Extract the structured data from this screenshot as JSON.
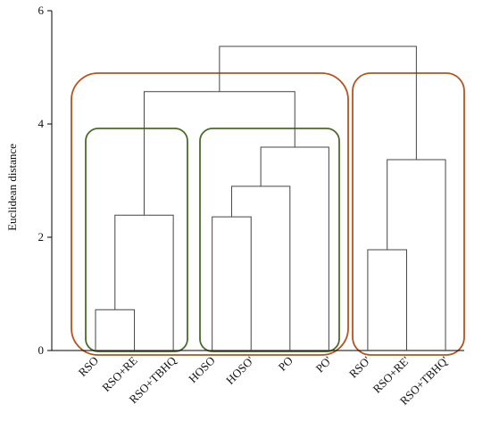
{
  "chart_data": {
    "type": "dendrogram",
    "y_label": "Euclidean distance",
    "ylim": [
      0,
      6
    ],
    "yticks": [
      0,
      2,
      4,
      6
    ],
    "leaves": [
      "RSO",
      "RSO+RE",
      "RSO+TBHQ",
      "HOSO",
      "HOSO'",
      "PO",
      "PO'",
      "RSO'",
      "RSO+RE'",
      "RSO+TBHQ'"
    ],
    "merges": [
      {
        "children": [
          0,
          1
        ],
        "height": 0.72
      },
      {
        "children": [
          10,
          2
        ],
        "height": 2.39
      },
      {
        "children": [
          3,
          4
        ],
        "height": 2.36
      },
      {
        "children": [
          12,
          5
        ],
        "height": 2.9
      },
      {
        "children": [
          13,
          6
        ],
        "height": 3.59
      },
      {
        "children": [
          11,
          14
        ],
        "height": 4.57
      },
      {
        "children": [
          7,
          8
        ],
        "height": 1.78
      },
      {
        "children": [
          16,
          9
        ],
        "height": 3.37
      },
      {
        "children": [
          15,
          17
        ],
        "height": 5.37
      }
    ],
    "color": "#444444"
  }
}
